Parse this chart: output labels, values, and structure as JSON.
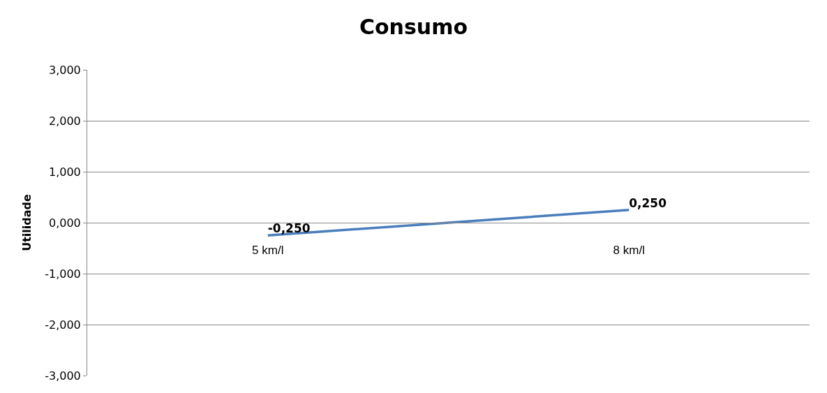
{
  "chart_data": {
    "type": "line",
    "title": "Consumo",
    "ylabel": "Utilidade",
    "categories": [
      "5 km/l",
      "8 km/l"
    ],
    "series": [
      {
        "color": "#4a7ebb",
        "values": [
          -0.25,
          0.25
        ],
        "value_labels": [
          "-0,250",
          "0,250"
        ]
      }
    ],
    "ylim": [
      -3,
      3
    ],
    "yticks": [
      {
        "value": -3,
        "label": "-3,000"
      },
      {
        "value": -2,
        "label": "-2,000"
      },
      {
        "value": -1,
        "label": "-1,000"
      },
      {
        "value": 0,
        "label": "0,000"
      },
      {
        "value": 1,
        "label": "1,000"
      },
      {
        "value": 2,
        "label": "2,000"
      },
      {
        "value": 3,
        "label": "3,000"
      }
    ],
    "grid": "y",
    "marker": "none",
    "line_style": "solid"
  }
}
